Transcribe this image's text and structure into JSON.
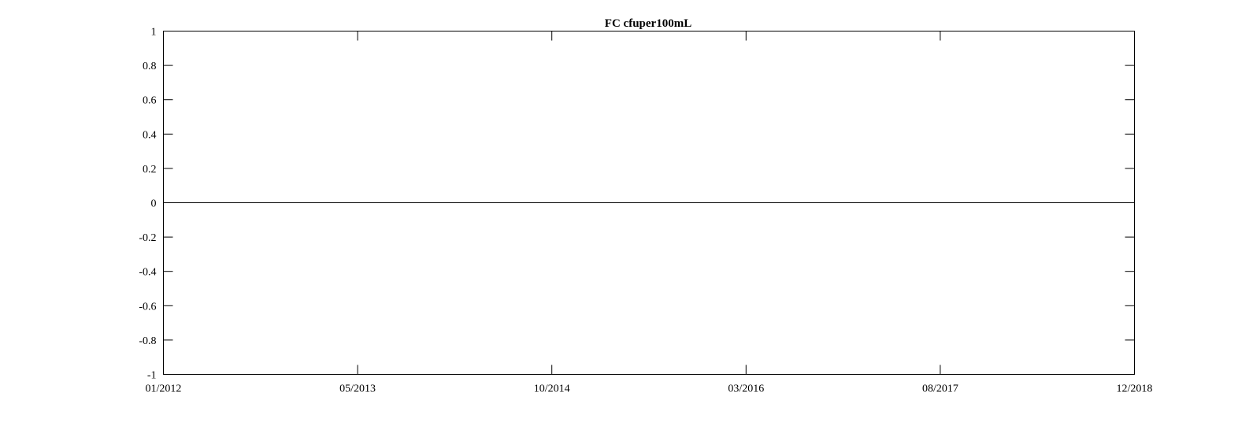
{
  "chart_data": {
    "type": "line",
    "title": "FC cfuper100mL",
    "xlabel": "",
    "ylabel": "",
    "x_ticks": [
      "01/2012",
      "05/2013",
      "10/2014",
      "03/2016",
      "08/2017",
      "12/2018"
    ],
    "y_ticks": [
      "1",
      "0.8",
      "0.6",
      "0.4",
      "0.2",
      "0",
      "-0.2",
      "-0.4",
      "-0.6",
      "-0.8",
      "-1"
    ],
    "xlim": [
      "01/2012",
      "12/2018"
    ],
    "ylim": [
      -1,
      1
    ],
    "grid": false,
    "series": [
      {
        "values": [
          0,
          0
        ],
        "x": [
          "01/2012",
          "12/2018"
        ],
        "color": "#000000"
      }
    ]
  }
}
